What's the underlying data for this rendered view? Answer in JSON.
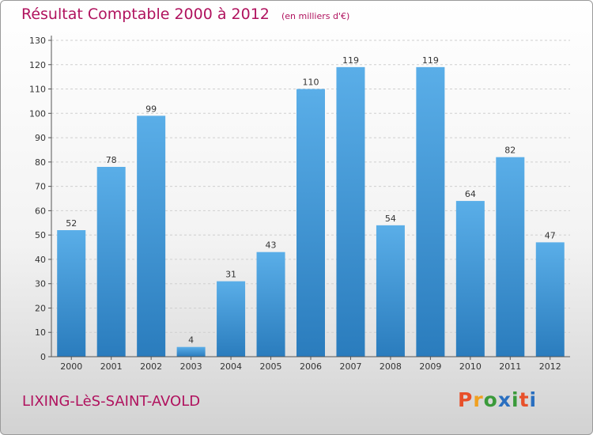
{
  "chart_data": {
    "type": "bar",
    "title": "Résultat Comptable 2000 à 2012",
    "subtitle": "(en milliers d'€)",
    "categories": [
      "2000",
      "2001",
      "2002",
      "2003",
      "2004",
      "2005",
      "2006",
      "2007",
      "2008",
      "2009",
      "2010",
      "2011",
      "2012"
    ],
    "values": [
      52,
      78,
      99,
      4,
      31,
      43,
      110,
      119,
      54,
      119,
      64,
      82,
      47
    ],
    "ylim": [
      0,
      130
    ],
    "yticks": [
      0,
      10,
      20,
      30,
      40,
      50,
      60,
      70,
      80,
      90,
      100,
      110,
      120,
      130
    ],
    "grid": true,
    "bar_color_top": "#5aaee8",
    "bar_color_bottom": "#2a7cbd"
  },
  "footer": {
    "commune": "LIXING-LèS-SAINT-AVOLD",
    "logo_text": "Proxiti",
    "logo_colors": [
      "#e8502a",
      "#f0a020",
      "#3a9a3a",
      "#2a6fc0",
      "#3a9a3a",
      "#e8502a",
      "#2a6fc0"
    ]
  },
  "colors": {
    "title": "#b0125e",
    "grid": "#cfcfcf",
    "axis": "#555555"
  }
}
